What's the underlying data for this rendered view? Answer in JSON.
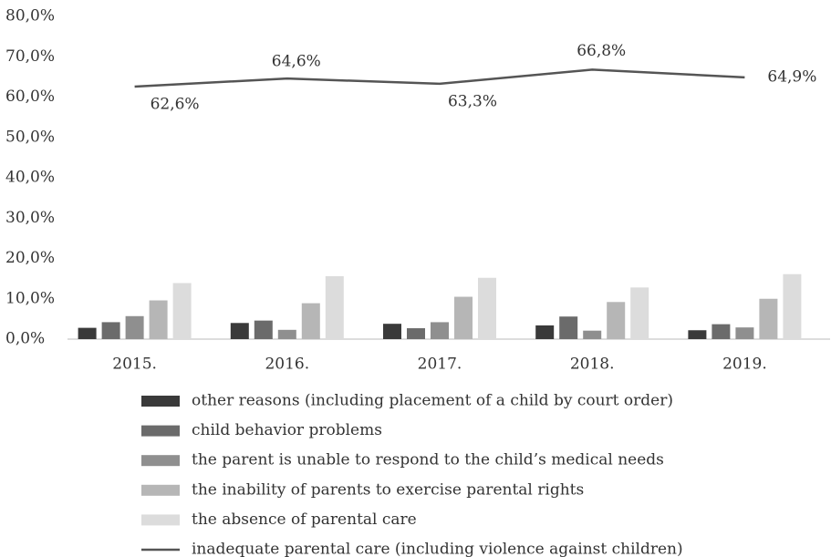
{
  "chart_data": {
    "type": "bar",
    "categories": [
      "2015.",
      "2016.",
      "2017.",
      "2018.",
      "2019."
    ],
    "series": [
      {
        "name": "other reasons (including placement of a child by court order)",
        "color": "#3a3a3a",
        "values": [
          2.8,
          4.0,
          3.8,
          3.4,
          2.2
        ]
      },
      {
        "name": "child behavior problems",
        "color": "#6b6b6b",
        "values": [
          4.2,
          4.6,
          2.7,
          5.6,
          3.7
        ]
      },
      {
        "name": "the parent is unable to respond to the child’s medical needs",
        "color": "#8f8f8f",
        "values": [
          5.7,
          2.3,
          4.2,
          2.1,
          2.9
        ]
      },
      {
        "name": "the inability of parents to exercise parental rights",
        "color": "#b6b6b6",
        "values": [
          9.6,
          8.9,
          10.5,
          9.2,
          10.0
        ]
      },
      {
        "name": "the absence of parental care",
        "color": "#dcdcdc",
        "values": [
          13.9,
          15.6,
          15.2,
          12.8,
          16.1
        ]
      },
      {
        "name": "inadequate parental care (including violence against children)",
        "color": "#555555",
        "type": "line",
        "values": [
          62.6,
          64.6,
          63.3,
          66.8,
          64.9
        ],
        "value_labels": [
          "62,6%",
          "64,6%",
          "63,3%",
          "66,8%",
          "64,9%"
        ]
      }
    ],
    "ylim": [
      0,
      80
    ],
    "yticks": [
      {
        "value": 0,
        "label": "0,0%"
      },
      {
        "value": 10,
        "label": "10,0%"
      },
      {
        "value": 20,
        "label": "20,0%"
      },
      {
        "value": 30,
        "label": "30,0%"
      },
      {
        "value": 40,
        "label": "40,0%"
      },
      {
        "value": 50,
        "label": "50,0%"
      },
      {
        "value": 60,
        "label": "60,0%"
      },
      {
        "value": 70,
        "label": "70,0%"
      },
      {
        "value": 80,
        "label": "80,0%"
      }
    ],
    "grid": false,
    "legend": "bottom"
  }
}
